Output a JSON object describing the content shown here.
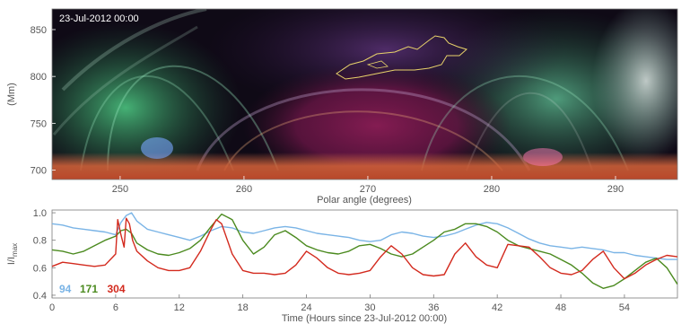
{
  "chart_data": [
    {
      "type": "heatmap",
      "timestamp": "23-Jul-2012 00:00",
      "xlabel": "Polar angle (degrees)",
      "ylabel": "(Mm)",
      "xlim": [
        244.5,
        295
      ],
      "ylim": [
        690,
        872
      ],
      "xticks": [
        250,
        260,
        270,
        280,
        290
      ],
      "yticks": [
        700,
        750,
        800,
        850
      ],
      "grid": false,
      "colors": {
        "background": "#0f0a16",
        "limb": "#c4502a",
        "loops": "#5fd39a",
        "cavity": "#7a1a4e",
        "contour": "#e8d26a"
      }
    },
    {
      "type": "line",
      "xlabel": "Time (Hours since 23-Jul-2012 00:00)",
      "ylabel": "I/I",
      "ylabel_sub": "max",
      "xlim": [
        0,
        59
      ],
      "ylim": [
        0.38,
        1.02
      ],
      "xticks": [
        0,
        6,
        12,
        18,
        24,
        30,
        36,
        42,
        48,
        54
      ],
      "yticks": [
        0.4,
        0.6,
        0.8,
        1.0
      ],
      "grid": false,
      "legend_position": "bottom-left",
      "series": [
        {
          "name": "94",
          "color": "#7ab4e6",
          "x": [
            0,
            1,
            2,
            3,
            4,
            5,
            6,
            6.5,
            7,
            7.5,
            8,
            9,
            10,
            11,
            12,
            13,
            14,
            15,
            16,
            17,
            18,
            19,
            20,
            21,
            22,
            23,
            24,
            25,
            26,
            27,
            28,
            29,
            30,
            31,
            32,
            33,
            34,
            35,
            36,
            37,
            38,
            39,
            40,
            41,
            42,
            43,
            44,
            45,
            46,
            47,
            48,
            49,
            50,
            51,
            52,
            53,
            54,
            55,
            56,
            57,
            58,
            59
          ],
          "values": [
            0.92,
            0.91,
            0.89,
            0.88,
            0.87,
            0.86,
            0.84,
            0.93,
            0.98,
            1.0,
            0.94,
            0.88,
            0.86,
            0.84,
            0.82,
            0.8,
            0.83,
            0.87,
            0.9,
            0.89,
            0.86,
            0.85,
            0.87,
            0.89,
            0.9,
            0.89,
            0.87,
            0.85,
            0.84,
            0.83,
            0.82,
            0.8,
            0.79,
            0.8,
            0.84,
            0.86,
            0.85,
            0.83,
            0.82,
            0.83,
            0.85,
            0.88,
            0.91,
            0.93,
            0.92,
            0.89,
            0.85,
            0.81,
            0.78,
            0.76,
            0.75,
            0.74,
            0.75,
            0.74,
            0.73,
            0.71,
            0.71,
            0.69,
            0.68,
            0.67,
            0.66,
            0.66
          ]
        },
        {
          "name": "171",
          "color": "#4b8a1f",
          "x": [
            0,
            1,
            2,
            3,
            4,
            5,
            6,
            6.5,
            7,
            7.5,
            8,
            9,
            10,
            11,
            12,
            13,
            14,
            15,
            16,
            17,
            18,
            19,
            20,
            21,
            22,
            23,
            24,
            25,
            26,
            27,
            28,
            29,
            30,
            31,
            32,
            33,
            34,
            35,
            36,
            37,
            38,
            39,
            40,
            41,
            42,
            43,
            44,
            45,
            46,
            47,
            48,
            49,
            50,
            51,
            52,
            53,
            54,
            55,
            56,
            57,
            58,
            59
          ],
          "values": [
            0.73,
            0.72,
            0.7,
            0.72,
            0.76,
            0.8,
            0.83,
            0.87,
            0.88,
            0.85,
            0.78,
            0.73,
            0.7,
            0.69,
            0.71,
            0.74,
            0.8,
            0.9,
            0.99,
            0.95,
            0.8,
            0.7,
            0.75,
            0.84,
            0.87,
            0.82,
            0.76,
            0.73,
            0.71,
            0.7,
            0.72,
            0.76,
            0.77,
            0.74,
            0.7,
            0.68,
            0.7,
            0.75,
            0.8,
            0.86,
            0.88,
            0.92,
            0.92,
            0.9,
            0.86,
            0.8,
            0.76,
            0.74,
            0.72,
            0.7,
            0.66,
            0.62,
            0.56,
            0.49,
            0.45,
            0.47,
            0.52,
            0.58,
            0.64,
            0.67,
            0.6,
            0.48
          ]
        },
        {
          "name": "304",
          "color": "#d32a1e",
          "x": [
            0,
            1,
            2,
            3,
            4,
            5,
            6,
            6.2,
            6.5,
            6.8,
            7,
            7.3,
            7.6,
            8,
            9,
            10,
            11,
            12,
            13,
            14,
            15,
            15.5,
            16,
            17,
            18,
            19,
            20,
            21,
            22,
            23,
            24,
            25,
            26,
            27,
            28,
            29,
            30,
            31,
            32,
            33,
            34,
            35,
            36,
            37,
            38,
            39,
            40,
            41,
            42,
            43,
            44,
            45,
            46,
            47,
            48,
            49,
            50,
            51,
            52,
            53,
            54,
            55,
            56,
            57,
            58,
            59
          ],
          "values": [
            0.61,
            0.64,
            0.63,
            0.62,
            0.61,
            0.62,
            0.7,
            0.95,
            0.84,
            0.75,
            0.96,
            0.92,
            0.8,
            0.72,
            0.65,
            0.6,
            0.58,
            0.58,
            0.6,
            0.72,
            0.88,
            0.95,
            0.92,
            0.7,
            0.58,
            0.56,
            0.56,
            0.55,
            0.56,
            0.62,
            0.72,
            0.67,
            0.6,
            0.56,
            0.55,
            0.56,
            0.58,
            0.68,
            0.76,
            0.7,
            0.6,
            0.55,
            0.54,
            0.55,
            0.7,
            0.78,
            0.68,
            0.62,
            0.6,
            0.77,
            0.76,
            0.75,
            0.68,
            0.6,
            0.56,
            0.55,
            0.58,
            0.66,
            0.72,
            0.6,
            0.52,
            0.56,
            0.62,
            0.66,
            0.69,
            0.68
          ]
        }
      ]
    }
  ]
}
